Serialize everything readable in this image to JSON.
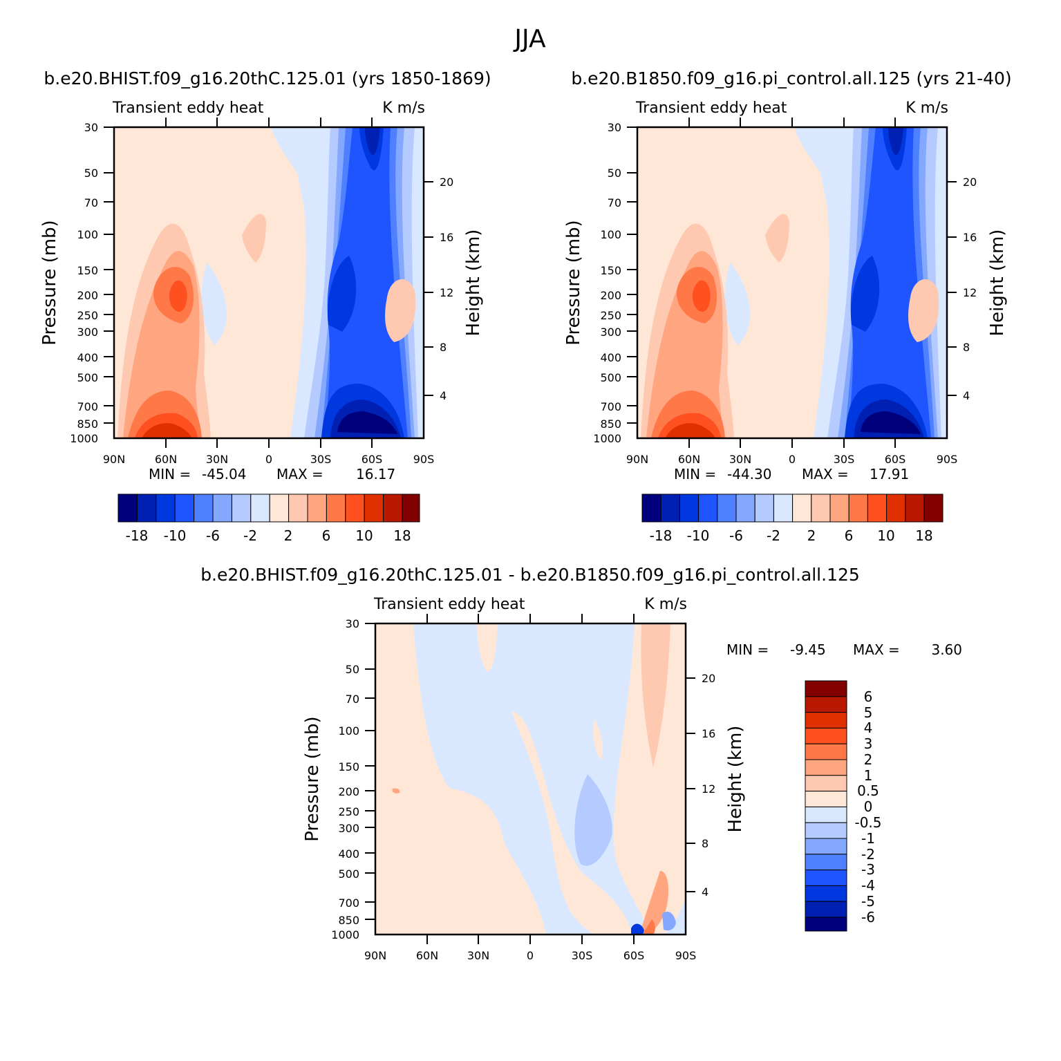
{
  "title": "JJA",
  "colors": {
    "scale": [
      "#00007d",
      "#0020b4",
      "#0038e0",
      "#1f55ff",
      "#4f80ff",
      "#85a8ff",
      "#b5cbff",
      "#dae8ff",
      "#ffe7d8",
      "#ffc8b0",
      "#ffa680",
      "#ff7848",
      "#ff5020",
      "#e03000",
      "#b81800",
      "#820000"
    ]
  },
  "chart_data": [
    {
      "type": "heatmap",
      "panel": "top-left",
      "title": "b.e20.BHIST.f09_g16.20thC.125.01 (yrs 1850-1869)",
      "left_string": "Transient eddy heat",
      "right_string": "K m/s",
      "xlabel": "",
      "ylabel": "Pressure (mb)",
      "y2label": "Height (km)",
      "x_ticks": [
        "90N",
        "60N",
        "30N",
        "0",
        "30S",
        "60S",
        "90S"
      ],
      "x_range": [
        90,
        -90
      ],
      "y_ticks": [
        30,
        50,
        70,
        100,
        150,
        200,
        250,
        300,
        400,
        500,
        700,
        850,
        1000
      ],
      "y_range": [
        1000,
        30
      ],
      "y_scale": "log",
      "y2_ticks": [
        4,
        8,
        12,
        16,
        20
      ],
      "stats": {
        "min_label": "MIN =",
        "min": "-45.04",
        "max_label": "MAX =",
        "max": "16.17"
      },
      "colorbar": {
        "orientation": "horizontal",
        "labels": [
          "-18",
          "-10",
          "-6",
          "-2",
          "2",
          "6",
          "10",
          "18"
        ]
      },
      "features": [
        {
          "lat": 55,
          "p": 900,
          "value": 16.17,
          "note": "max"
        },
        {
          "lat": 50,
          "p": 200,
          "value": 10
        },
        {
          "lat": 5,
          "p": 110,
          "value": 3
        },
        {
          "lat": -56,
          "p": 880,
          "value": -45.04,
          "note": "min"
        },
        {
          "lat": -40,
          "p": 220,
          "value": -14
        },
        {
          "lat": -58,
          "p": 35,
          "value": -18
        },
        {
          "lat": -75,
          "p": 230,
          "value": 3
        }
      ]
    },
    {
      "type": "heatmap",
      "panel": "top-right",
      "title": "b.e20.B1850.f09_g16.pi_control.all.125 (yrs 21-40)",
      "left_string": "Transient eddy heat",
      "right_string": "K m/s",
      "xlabel": "",
      "ylabel": "Pressure (mb)",
      "y2label": "Height (km)",
      "x_ticks": [
        "90N",
        "60N",
        "30N",
        "0",
        "30S",
        "60S",
        "90S"
      ],
      "x_range": [
        90,
        -90
      ],
      "y_ticks": [
        30,
        50,
        70,
        100,
        150,
        200,
        250,
        300,
        400,
        500,
        700,
        850,
        1000
      ],
      "y_range": [
        1000,
        30
      ],
      "y_scale": "log",
      "y2_ticks": [
        4,
        8,
        12,
        16,
        20
      ],
      "stats": {
        "min_label": "MIN =",
        "min": "-44.30",
        "max_label": "MAX =",
        "max": "17.91"
      },
      "colorbar": {
        "orientation": "horizontal",
        "labels": [
          "-18",
          "-10",
          "-6",
          "-2",
          "2",
          "6",
          "10",
          "18"
        ]
      },
      "features": [
        {
          "lat": 55,
          "p": 900,
          "value": 17.91,
          "note": "max"
        },
        {
          "lat": 50,
          "p": 200,
          "value": 10
        },
        {
          "lat": 5,
          "p": 110,
          "value": 3
        },
        {
          "lat": -56,
          "p": 880,
          "value": -44.3,
          "note": "min"
        },
        {
          "lat": -40,
          "p": 220,
          "value": -14
        },
        {
          "lat": -58,
          "p": 35,
          "value": -18
        },
        {
          "lat": -75,
          "p": 230,
          "value": 3
        }
      ]
    },
    {
      "type": "heatmap",
      "panel": "bottom",
      "title": "b.e20.BHIST.f09_g16.20thC.125.01 - b.e20.B1850.f09_g16.pi_control.all.125",
      "left_string": "Transient eddy heat",
      "right_string": "K m/s",
      "xlabel": "",
      "ylabel": "Pressure (mb)",
      "y2label": "Height (km)",
      "x_ticks": [
        "90N",
        "60N",
        "30N",
        "0",
        "30S",
        "60S",
        "90S"
      ],
      "x_range": [
        90,
        -90
      ],
      "y_ticks": [
        30,
        50,
        70,
        100,
        150,
        200,
        250,
        300,
        400,
        500,
        700,
        850,
        1000
      ],
      "y_range": [
        1000,
        30
      ],
      "y_scale": "log",
      "y2_ticks": [
        4,
        8,
        12,
        16,
        20
      ],
      "stats": {
        "min_label": "MIN =",
        "min": "-9.45",
        "max_label": "MAX =",
        "max": "3.60"
      },
      "colorbar": {
        "orientation": "vertical",
        "labels": [
          "6",
          "5",
          "4",
          "3",
          "2",
          "1",
          "0.5",
          "0",
          "-0.5",
          "-1",
          "-2",
          "-3",
          "-4",
          "-5",
          "-6"
        ]
      },
      "features": [
        {
          "lat": -60,
          "p": 30,
          "value": 1
        },
        {
          "lat": -35,
          "p": 300,
          "value": -0.8
        },
        {
          "lat": -70,
          "p": 700,
          "value": 1.5
        },
        {
          "lat": -65,
          "p": 990,
          "value": -6
        }
      ]
    }
  ]
}
